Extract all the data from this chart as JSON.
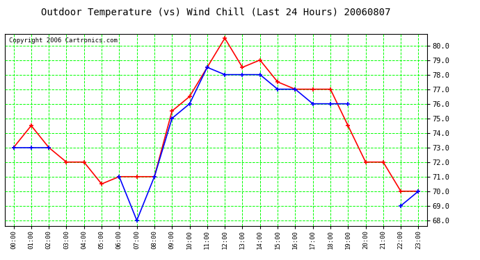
{
  "title": "Outdoor Temperature (vs) Wind Chill (Last 24 Hours) 20060807",
  "copyright_text": "Copyright 2006 Cartronics.com",
  "hours": [
    "00:00",
    "01:00",
    "02:00",
    "03:00",
    "04:00",
    "05:00",
    "06:00",
    "07:00",
    "08:00",
    "09:00",
    "10:00",
    "11:00",
    "12:00",
    "13:00",
    "14:00",
    "15:00",
    "16:00",
    "17:00",
    "18:00",
    "19:00",
    "20:00",
    "21:00",
    "22:00",
    "23:00"
  ],
  "temp_red": [
    73.0,
    74.5,
    73.0,
    72.0,
    72.0,
    70.5,
    71.0,
    71.0,
    71.0,
    75.5,
    76.5,
    78.5,
    80.5,
    78.5,
    79.0,
    77.5,
    77.0,
    77.0,
    77.0,
    74.5,
    72.0,
    72.0,
    70.0,
    70.0
  ],
  "wind_chill_blue": [
    73.0,
    73.0,
    73.0,
    null,
    null,
    null,
    71.0,
    68.0,
    71.0,
    75.0,
    76.0,
    78.5,
    78.0,
    78.0,
    78.0,
    77.0,
    77.0,
    76.0,
    76.0,
    76.0,
    null,
    null,
    69.0,
    70.0
  ],
  "yticks": [
    68.0,
    69.0,
    70.0,
    71.0,
    72.0,
    73.0,
    74.0,
    75.0,
    76.0,
    77.0,
    78.0,
    79.0,
    80.0
  ],
  "red_color": "#FF0000",
  "blue_color": "#0000FF",
  "green_grid_color": "#00FF00",
  "bg_color": "#FFFFFF",
  "title_fontsize": 10,
  "copyright_fontsize": 6.5
}
